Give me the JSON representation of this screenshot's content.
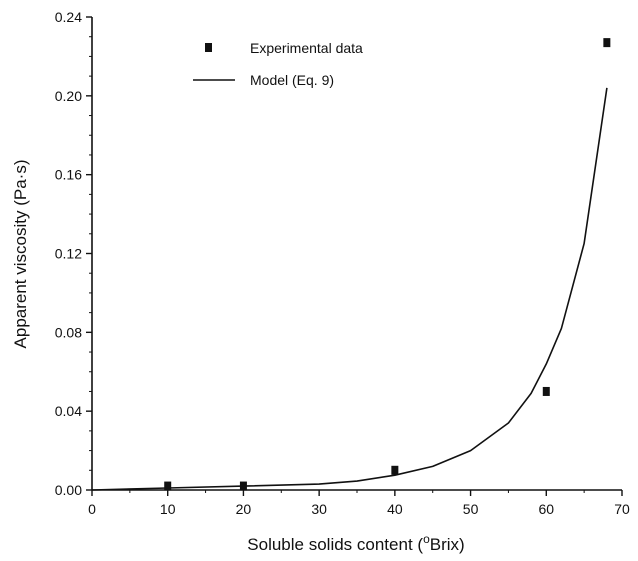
{
  "chart_data": {
    "type": "scatter",
    "title": "",
    "xlabel": "Soluble solids content (",
    "xlabel_degree": "o",
    "xlabel_unit": "Brix)",
    "ylabel": "Apparent viscosity (Pa·s)",
    "xlim": [
      0,
      70
    ],
    "ylim": [
      0,
      0.24
    ],
    "x_ticks": [
      "0",
      "10",
      "20",
      "30",
      "40",
      "50",
      "60",
      "70"
    ],
    "y_ticks": [
      "0.00",
      "0.04",
      "0.08",
      "0.12",
      "0.16",
      "0.20",
      "0.24"
    ],
    "grid": false,
    "legend_position": "top-left",
    "series": [
      {
        "name": "Experimental data",
        "kind": "markers",
        "x": [
          10,
          20,
          40,
          60,
          68
        ],
        "y": [
          0.002,
          0.002,
          0.01,
          0.05,
          0.227
        ]
      },
      {
        "name": "Model (Eq. 9)",
        "kind": "line",
        "x": [
          0,
          10,
          20,
          30,
          35,
          40,
          45,
          50,
          55,
          58,
          60,
          62,
          65,
          68
        ],
        "y": [
          0.0,
          0.001,
          0.002,
          0.003,
          0.0045,
          0.0075,
          0.012,
          0.02,
          0.034,
          0.049,
          0.064,
          0.082,
          0.125,
          0.204
        ]
      }
    ],
    "colors": {
      "ink": "#111111"
    }
  }
}
